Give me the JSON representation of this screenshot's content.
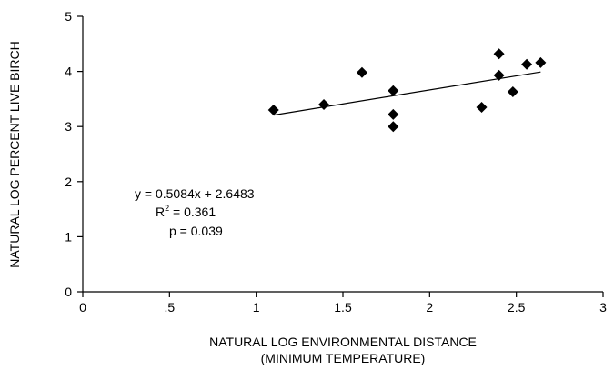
{
  "chart_data": {
    "type": "scatter",
    "title": "",
    "xlabel": [
      "NATURAL LOG ENVIRONMENTAL DISTANCE",
      "(MINIMUM TEMPERATURE)"
    ],
    "ylabel": "NATURAL LOG PERCENT LIVE BIRCH",
    "xlim": [
      0,
      3
    ],
    "ylim": [
      0,
      5
    ],
    "x_ticks": [
      0,
      0.5,
      1,
      1.5,
      2,
      2.5,
      3
    ],
    "x_tick_labels": [
      "0",
      ".5",
      "1",
      "1.5",
      "2",
      "2.5",
      "3"
    ],
    "y_ticks": [
      0,
      1,
      2,
      3,
      4,
      5
    ],
    "y_tick_labels": [
      "0",
      "1",
      "2",
      "3",
      "4",
      "5"
    ],
    "grid": false,
    "marker": "diamond",
    "series": [
      {
        "points": [
          {
            "x": 1.1,
            "y": 3.3
          },
          {
            "x": 1.39,
            "y": 3.4
          },
          {
            "x": 1.61,
            "y": 3.98
          },
          {
            "x": 1.79,
            "y": 3.65
          },
          {
            "x": 1.79,
            "y": 3.22
          },
          {
            "x": 1.79,
            "y": 3.0
          },
          {
            "x": 2.3,
            "y": 3.35
          },
          {
            "x": 2.4,
            "y": 4.32
          },
          {
            "x": 2.4,
            "y": 3.93
          },
          {
            "x": 2.48,
            "y": 3.63
          },
          {
            "x": 2.56,
            "y": 4.13
          },
          {
            "x": 2.64,
            "y": 4.16
          }
        ]
      }
    ],
    "trendline": {
      "slope": 0.5084,
      "intercept": 2.6483,
      "x_range": [
        1.1,
        2.64
      ]
    },
    "annotations": {
      "equation": "y = 0.5084x + 2.6483",
      "r2_prefix": "R",
      "r2_sup": "2",
      "r2_value": " = 0.361",
      "p_value": "p = 0.039"
    }
  }
}
